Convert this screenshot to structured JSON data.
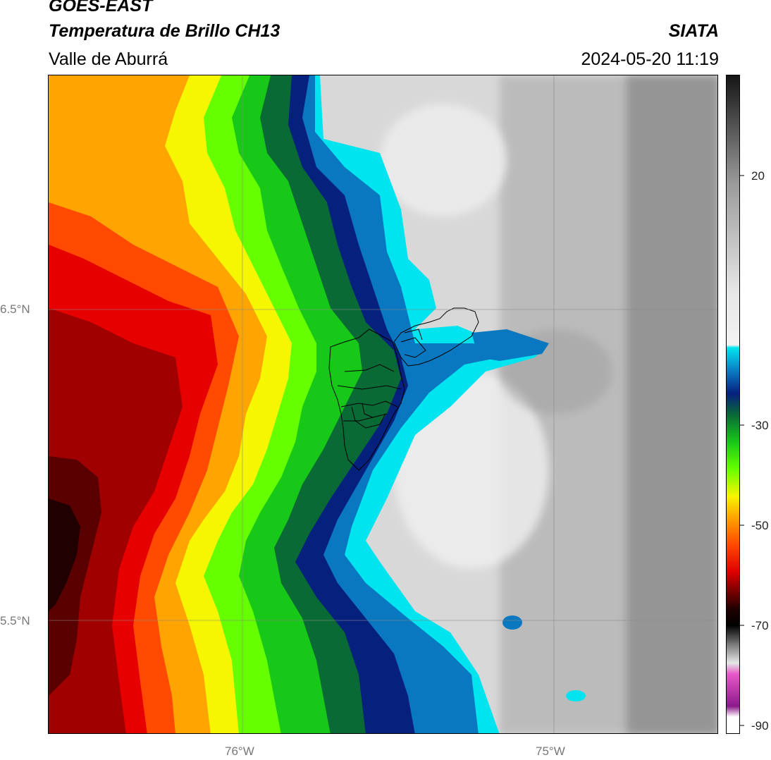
{
  "header": {
    "satellite": "GOES-EAST",
    "product": "Temperatura de Brillo CH13",
    "region": "Valle de Aburrá",
    "agency": "SIATA",
    "datetime": "2024-05-20 11:19"
  },
  "axes": {
    "lat_labels": [
      "6.5°N",
      "5.5°N"
    ],
    "lon_labels": [
      "76°W",
      "75°W"
    ]
  },
  "colorbar": {
    "tick_labels": [
      "20",
      "-30",
      "-50",
      "-70",
      "-90"
    ],
    "stops": [
      {
        "value": 30,
        "color": "#151515"
      },
      {
        "value": 10,
        "color": "#9a9a9a"
      },
      {
        "value": -10,
        "color": "#e6e6e6"
      },
      {
        "value": -20,
        "color": "#f2f2f2"
      },
      {
        "value": -20.5,
        "color": "#00e4f0"
      },
      {
        "value": -25,
        "color": "#0a78c0"
      },
      {
        "value": -29,
        "color": "#06207e"
      },
      {
        "value": -33,
        "color": "#0a6a36"
      },
      {
        "value": -38,
        "color": "#18c818"
      },
      {
        "value": -43,
        "color": "#66ff00"
      },
      {
        "value": -48,
        "color": "#f6f600"
      },
      {
        "value": -52,
        "color": "#ffa400"
      },
      {
        "value": -57,
        "color": "#ff4a00"
      },
      {
        "value": -62,
        "color": "#e00000"
      },
      {
        "value": -66,
        "color": "#700000"
      },
      {
        "value": -69,
        "color": "#200000"
      },
      {
        "value": -72,
        "color": "#000000"
      },
      {
        "value": -76,
        "color": "#888888"
      },
      {
        "value": -79,
        "color": "#e6e6e6"
      },
      {
        "value": -81,
        "color": "#e859c8"
      },
      {
        "value": -87,
        "color": "#8c1a8c"
      },
      {
        "value": -89,
        "color": "#ffffff"
      }
    ]
  }
}
